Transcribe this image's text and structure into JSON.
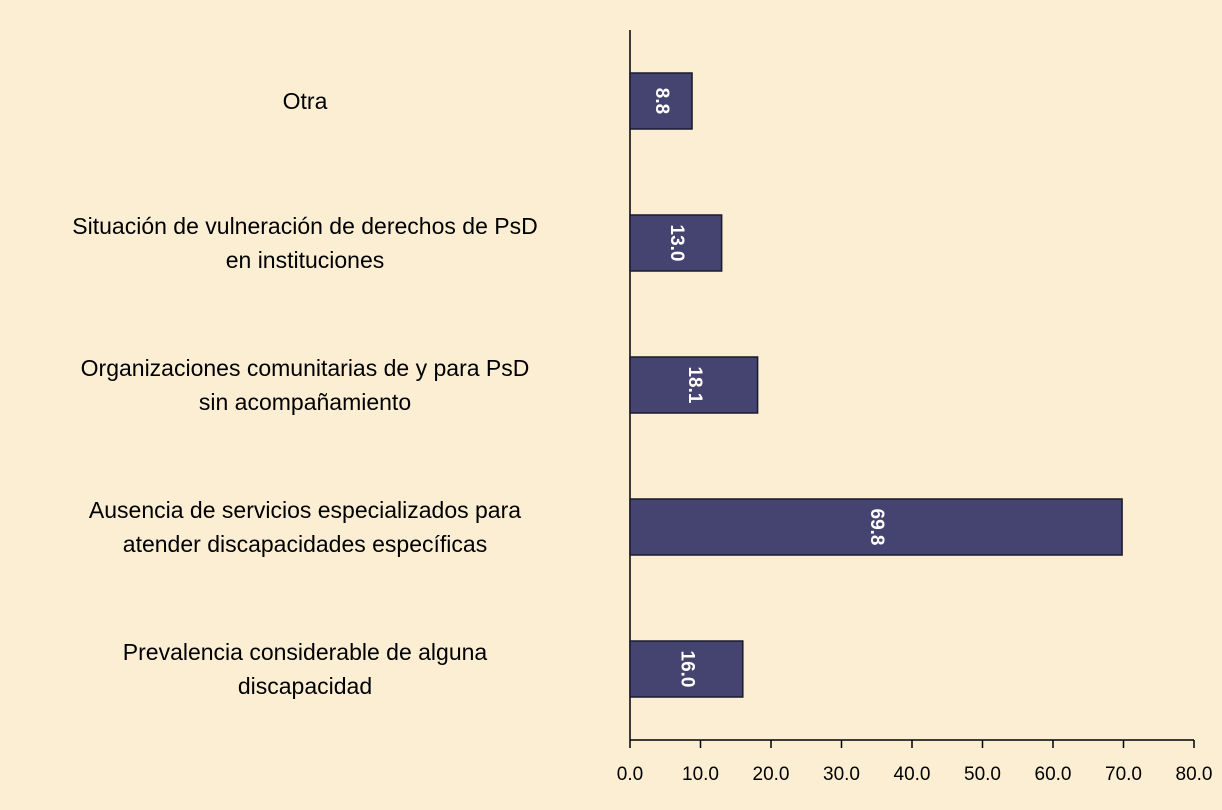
{
  "chart_data": {
    "type": "bar",
    "orientation": "horizontal",
    "categories": [
      "Otra",
      "Situación de vulneración de derechos de PsD\nen instituciones",
      "Organizaciones comunitarias de y para PsD\nsin acompañamiento",
      "Ausencia de servicios especializados para\natender discapacidades específicas",
      "Prevalencia considerable de alguna\ndiscapacidad"
    ],
    "values": [
      8.8,
      13.0,
      18.1,
      69.8,
      16.0
    ],
    "value_labels": [
      "8.8",
      "13.0",
      "18.1",
      "69.8",
      "16.0"
    ],
    "color": "#454370",
    "xlim": [
      0,
      80
    ],
    "xticks": [
      {
        "value": 0,
        "label": "0.0"
      },
      {
        "value": 10,
        "label": "10.0"
      },
      {
        "value": 20,
        "label": "20.0"
      },
      {
        "value": 30,
        "label": "30.0"
      },
      {
        "value": 40,
        "label": "40.0"
      },
      {
        "value": 50,
        "label": "50.0"
      },
      {
        "value": 60,
        "label": "60.0"
      },
      {
        "value": 70,
        "label": "70.0"
      },
      {
        "value": 80,
        "label": "80.0"
      }
    ]
  }
}
